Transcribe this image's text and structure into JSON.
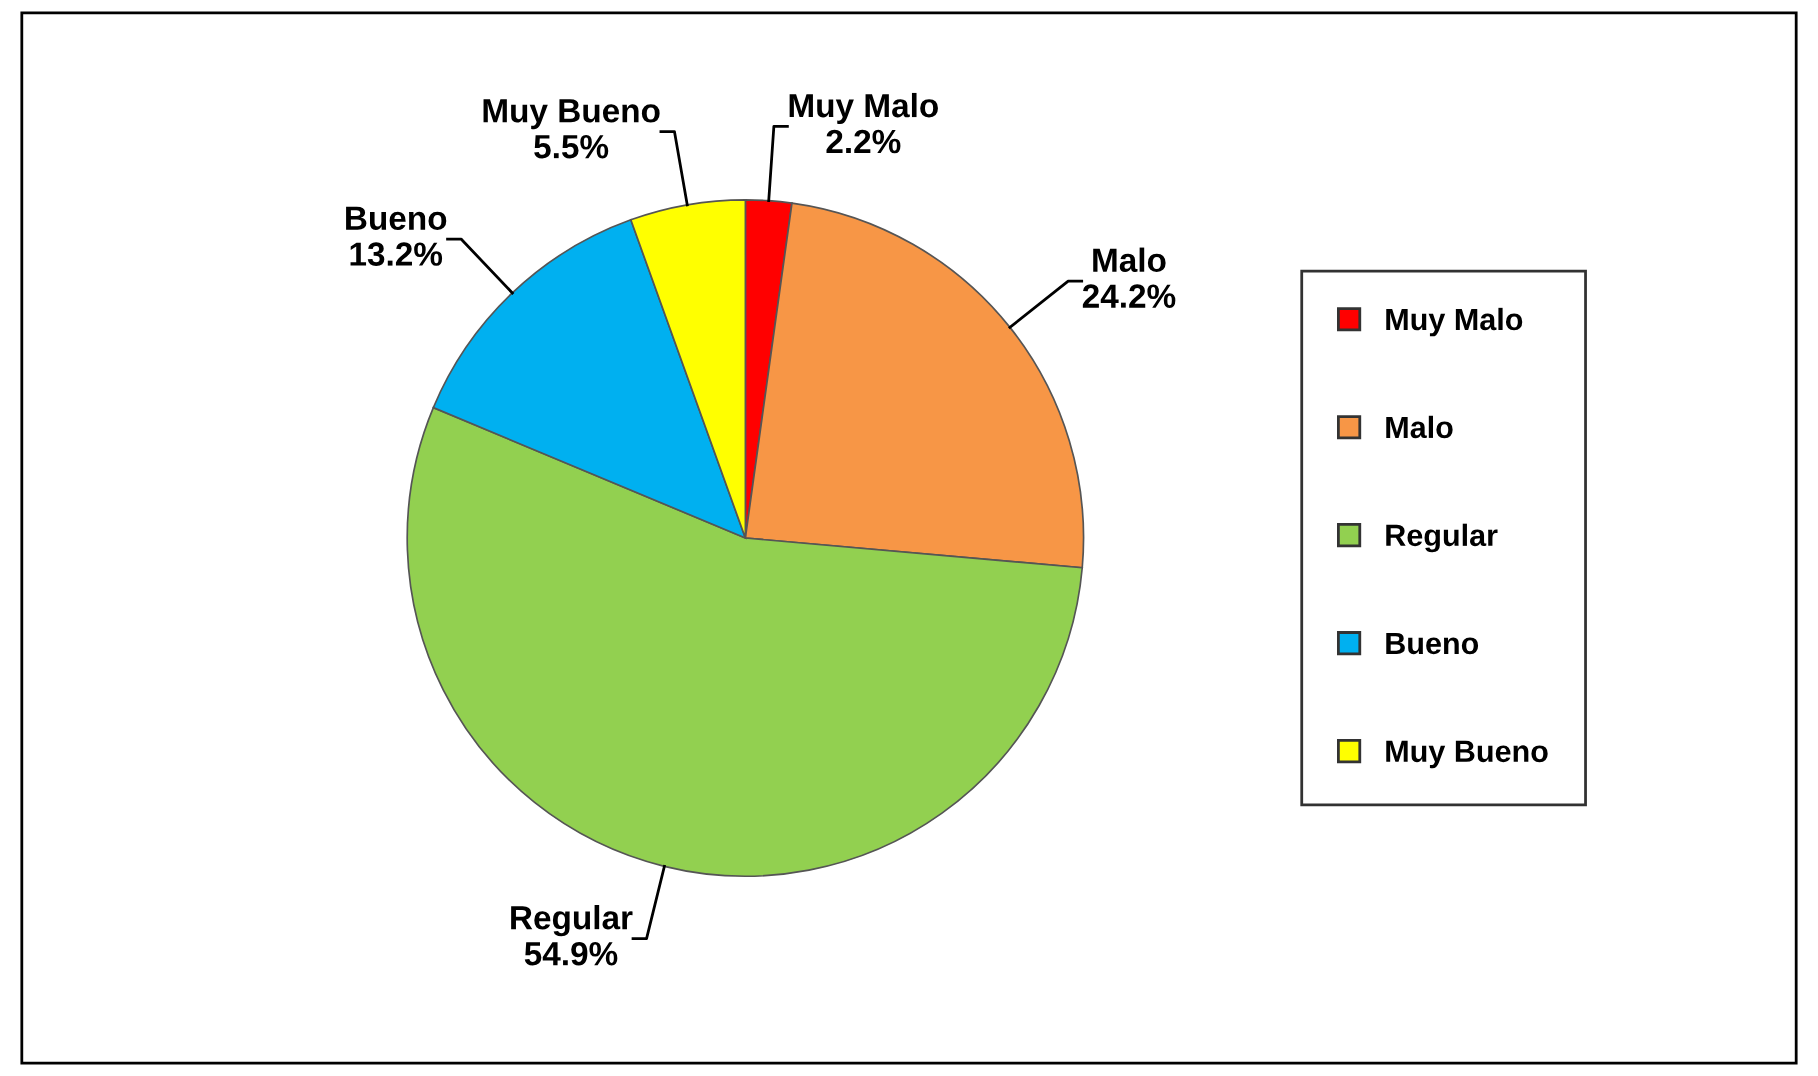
{
  "chart_data": {
    "type": "pie",
    "categories": [
      "Muy Malo",
      "Malo",
      "Regular",
      "Bueno",
      "Muy Bueno"
    ],
    "values": [
      2.2,
      24.2,
      54.9,
      13.2,
      5.5
    ],
    "value_labels": [
      "2.2%",
      "24.2%",
      "54.9%",
      "13.2%",
      "5.5%"
    ],
    "colors": [
      "#ff0000",
      "#f79646",
      "#92d050",
      "#00b0f0",
      "#ffff00"
    ],
    "legend": "right"
  }
}
